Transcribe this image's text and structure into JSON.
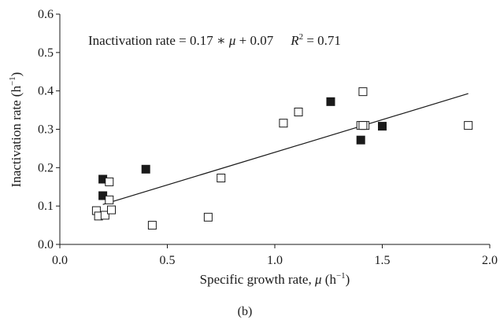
{
  "chart_data": {
    "type": "scatter",
    "caption": "(b)",
    "xlabel": {
      "main": "Specific growth rate, ",
      "symbol": "μ",
      "unit_open": " (h",
      "unit_exp": "−1",
      "unit_close": ")"
    },
    "ylabel": {
      "main": "Inactivation rate (h",
      "unit_exp": "−1",
      "unit_close": ")"
    },
    "xlim": [
      0.0,
      2.0
    ],
    "ylim": [
      0.0,
      0.6
    ],
    "xticks": [
      "0.0",
      "0.5",
      "1.0",
      "1.5",
      "2.0"
    ],
    "xtick_values": [
      0.0,
      0.5,
      1.0,
      1.5,
      2.0
    ],
    "yticks": [
      "0.0",
      "0.1",
      "0.2",
      "0.3",
      "0.4",
      "0.5",
      "0.6"
    ],
    "ytick_values": [
      0.0,
      0.1,
      0.2,
      0.3,
      0.4,
      0.5,
      0.6
    ],
    "grid": false,
    "annotation": {
      "equation": "Inactivation rate = 0.17 ∗ ",
      "mu": "μ",
      "equation_tail": " + 0.07",
      "r_label": "R",
      "r_exp": "2",
      "r_value": " = 0.71"
    },
    "trendline": {
      "slope": 0.17,
      "intercept": 0.07,
      "x_range": [
        0.2,
        1.9
      ]
    },
    "series": [
      {
        "marker": "square-filled",
        "color": "#1a1a1a",
        "x": [
          0.2,
          0.2,
          0.4,
          1.26,
          1.4,
          1.5
        ],
        "y": [
          0.17,
          0.127,
          0.196,
          0.372,
          0.272,
          0.308
        ]
      },
      {
        "marker": "square-open",
        "color": "#1a1a1a",
        "x": [
          0.17,
          0.18,
          0.21,
          0.23,
          0.23,
          0.24,
          0.43,
          0.69,
          0.75,
          1.04,
          1.11,
          1.4,
          1.41,
          1.42,
          1.41,
          1.9
        ],
        "y": [
          0.088,
          0.074,
          0.076,
          0.163,
          0.116,
          0.09,
          0.05,
          0.071,
          0.173,
          0.316,
          0.345,
          0.31,
          0.398,
          0.31,
          0.31,
          0.31
        ]
      }
    ]
  }
}
